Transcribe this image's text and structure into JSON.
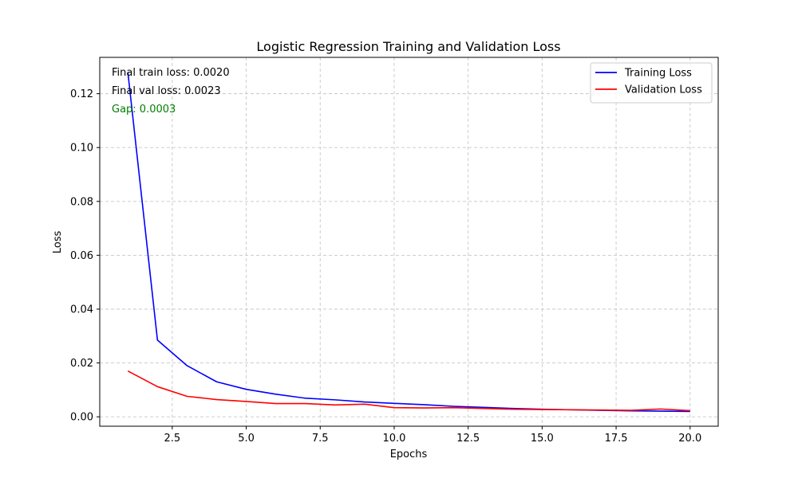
{
  "chart_data": {
    "type": "line",
    "title": "Logistic Regression Training and Validation Loss",
    "xlabel": "Epochs",
    "ylabel": "Loss",
    "xlim": [
      0.05,
      20.95
    ],
    "ylim": [
      -0.0035,
      0.1335
    ],
    "grid": true,
    "grid_style": "dashed",
    "legend_position": "top-right",
    "x_ticks": [
      2.5,
      5.0,
      7.5,
      10.0,
      12.5,
      15.0,
      17.5,
      20.0
    ],
    "x_tick_labels": [
      "2.5",
      "5.0",
      "7.5",
      "10.0",
      "12.5",
      "15.0",
      "17.5",
      "20.0"
    ],
    "y_ticks": [
      0.0,
      0.02,
      0.04,
      0.06,
      0.08,
      0.1,
      0.12
    ],
    "y_tick_labels": [
      "0.00",
      "0.02",
      "0.04",
      "0.06",
      "0.08",
      "0.10",
      "0.12"
    ],
    "x": [
      1,
      2,
      3,
      4,
      5,
      6,
      7,
      8,
      9,
      10,
      11,
      12,
      13,
      14,
      15,
      16,
      17,
      18,
      19,
      20
    ],
    "series": [
      {
        "name": "Training Loss",
        "color": "#0000ff",
        "values": [
          0.128,
          0.0285,
          0.019,
          0.013,
          0.0102,
          0.0084,
          0.0069,
          0.0063,
          0.0055,
          0.005,
          0.0045,
          0.0039,
          0.0035,
          0.0031,
          0.0028,
          0.0026,
          0.0024,
          0.0022,
          0.0021,
          0.002
        ]
      },
      {
        "name": "Validation Loss",
        "color": "#ff0000",
        "values": [
          0.017,
          0.0112,
          0.0076,
          0.0064,
          0.0057,
          0.0049,
          0.0049,
          0.0044,
          0.0047,
          0.0034,
          0.0033,
          0.0034,
          0.0031,
          0.0028,
          0.0027,
          0.0026,
          0.0025,
          0.0024,
          0.0029,
          0.0023
        ]
      }
    ],
    "annotations": [
      {
        "text": "Final train loss: 0.0020",
        "color": "#000000"
      },
      {
        "text": "Final val loss: 0.0023",
        "color": "#000000"
      },
      {
        "text": "Gap: 0.0003",
        "color": "#008000"
      }
    ]
  }
}
